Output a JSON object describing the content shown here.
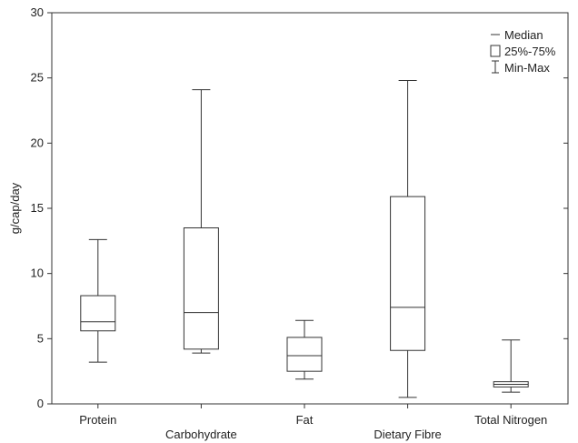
{
  "chart_data": {
    "type": "box",
    "ylabel": "g/cap/day",
    "xlabel": "",
    "ylim": [
      0,
      30
    ],
    "yticks": [
      0,
      5,
      10,
      15,
      20,
      25,
      30
    ],
    "grid": false,
    "legend_position": "top-right",
    "legend": {
      "median": "Median",
      "iqr": "25%-75%",
      "range": "Min-Max"
    },
    "series": [
      {
        "name": "Protein",
        "min": 3.2,
        "q1": 5.6,
        "median": 6.3,
        "q3": 8.3,
        "max": 12.6
      },
      {
        "name": "Carbohydrate",
        "min": 3.9,
        "q1": 4.2,
        "median": 7.0,
        "q3": 13.5,
        "max": 24.1
      },
      {
        "name": "Fat",
        "min": 1.9,
        "q1": 2.5,
        "median": 3.7,
        "q3": 5.1,
        "max": 6.4
      },
      {
        "name": "Dietary Fibre",
        "min": 0.5,
        "q1": 4.1,
        "median": 7.4,
        "q3": 15.9,
        "max": 24.8
      },
      {
        "name": "Total Nitrogen",
        "min": 0.9,
        "q1": 1.3,
        "median": 1.5,
        "q3": 1.7,
        "max": 4.9
      }
    ]
  }
}
